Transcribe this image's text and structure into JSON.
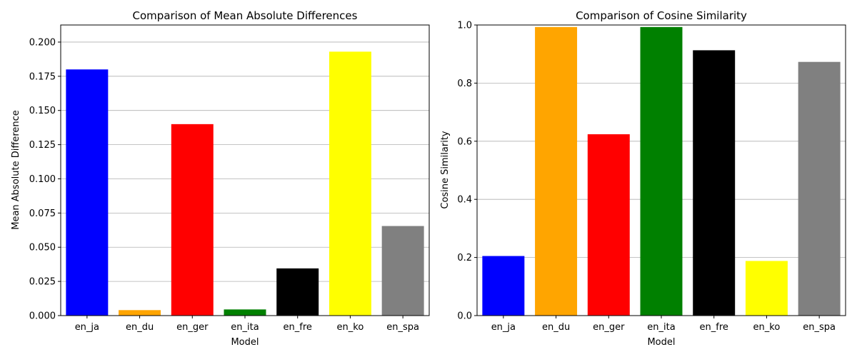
{
  "chart_data": [
    {
      "type": "bar",
      "title": "Comparison of Mean Absolute Differences",
      "xlabel": "Model",
      "ylabel": "Mean Absolute Difference",
      "categories": [
        "en_ja",
        "en_du",
        "en_ger",
        "en_ita",
        "en_fre",
        "en_ko",
        "en_spa"
      ],
      "values": [
        0.18,
        0.004,
        0.14,
        0.0045,
        0.0345,
        0.193,
        0.0655
      ],
      "colors": [
        "#0000ff",
        "#ffa500",
        "#ff0000",
        "#008000",
        "#000000",
        "#ffff00",
        "#808080"
      ],
      "ylim": [
        0,
        0.2125
      ],
      "yticks": [
        0.0,
        0.025,
        0.05,
        0.075,
        0.1,
        0.125,
        0.15,
        0.175,
        0.2
      ],
      "ytick_labels": [
        "0.000",
        "0.025",
        "0.050",
        "0.075",
        "0.100",
        "0.125",
        "0.150",
        "0.175",
        "0.200"
      ],
      "grid": "y"
    },
    {
      "type": "bar",
      "title": "Comparison of Cosine Similarity",
      "xlabel": "Model",
      "ylabel": "Cosine Similarity",
      "categories": [
        "en_ja",
        "en_du",
        "en_ger",
        "en_ita",
        "en_fre",
        "en_ko",
        "en_spa"
      ],
      "values": [
        0.205,
        0.993,
        0.624,
        0.993,
        0.913,
        0.188,
        0.873
      ],
      "colors": [
        "#0000ff",
        "#ffa500",
        "#ff0000",
        "#008000",
        "#000000",
        "#ffff00",
        "#808080"
      ],
      "ylim": [
        0,
        1.0
      ],
      "yticks": [
        0.0,
        0.2,
        0.4,
        0.6,
        0.8,
        1.0
      ],
      "ytick_labels": [
        "0.0",
        "0.2",
        "0.4",
        "0.6",
        "0.8",
        "1.0"
      ],
      "grid": "y"
    }
  ]
}
